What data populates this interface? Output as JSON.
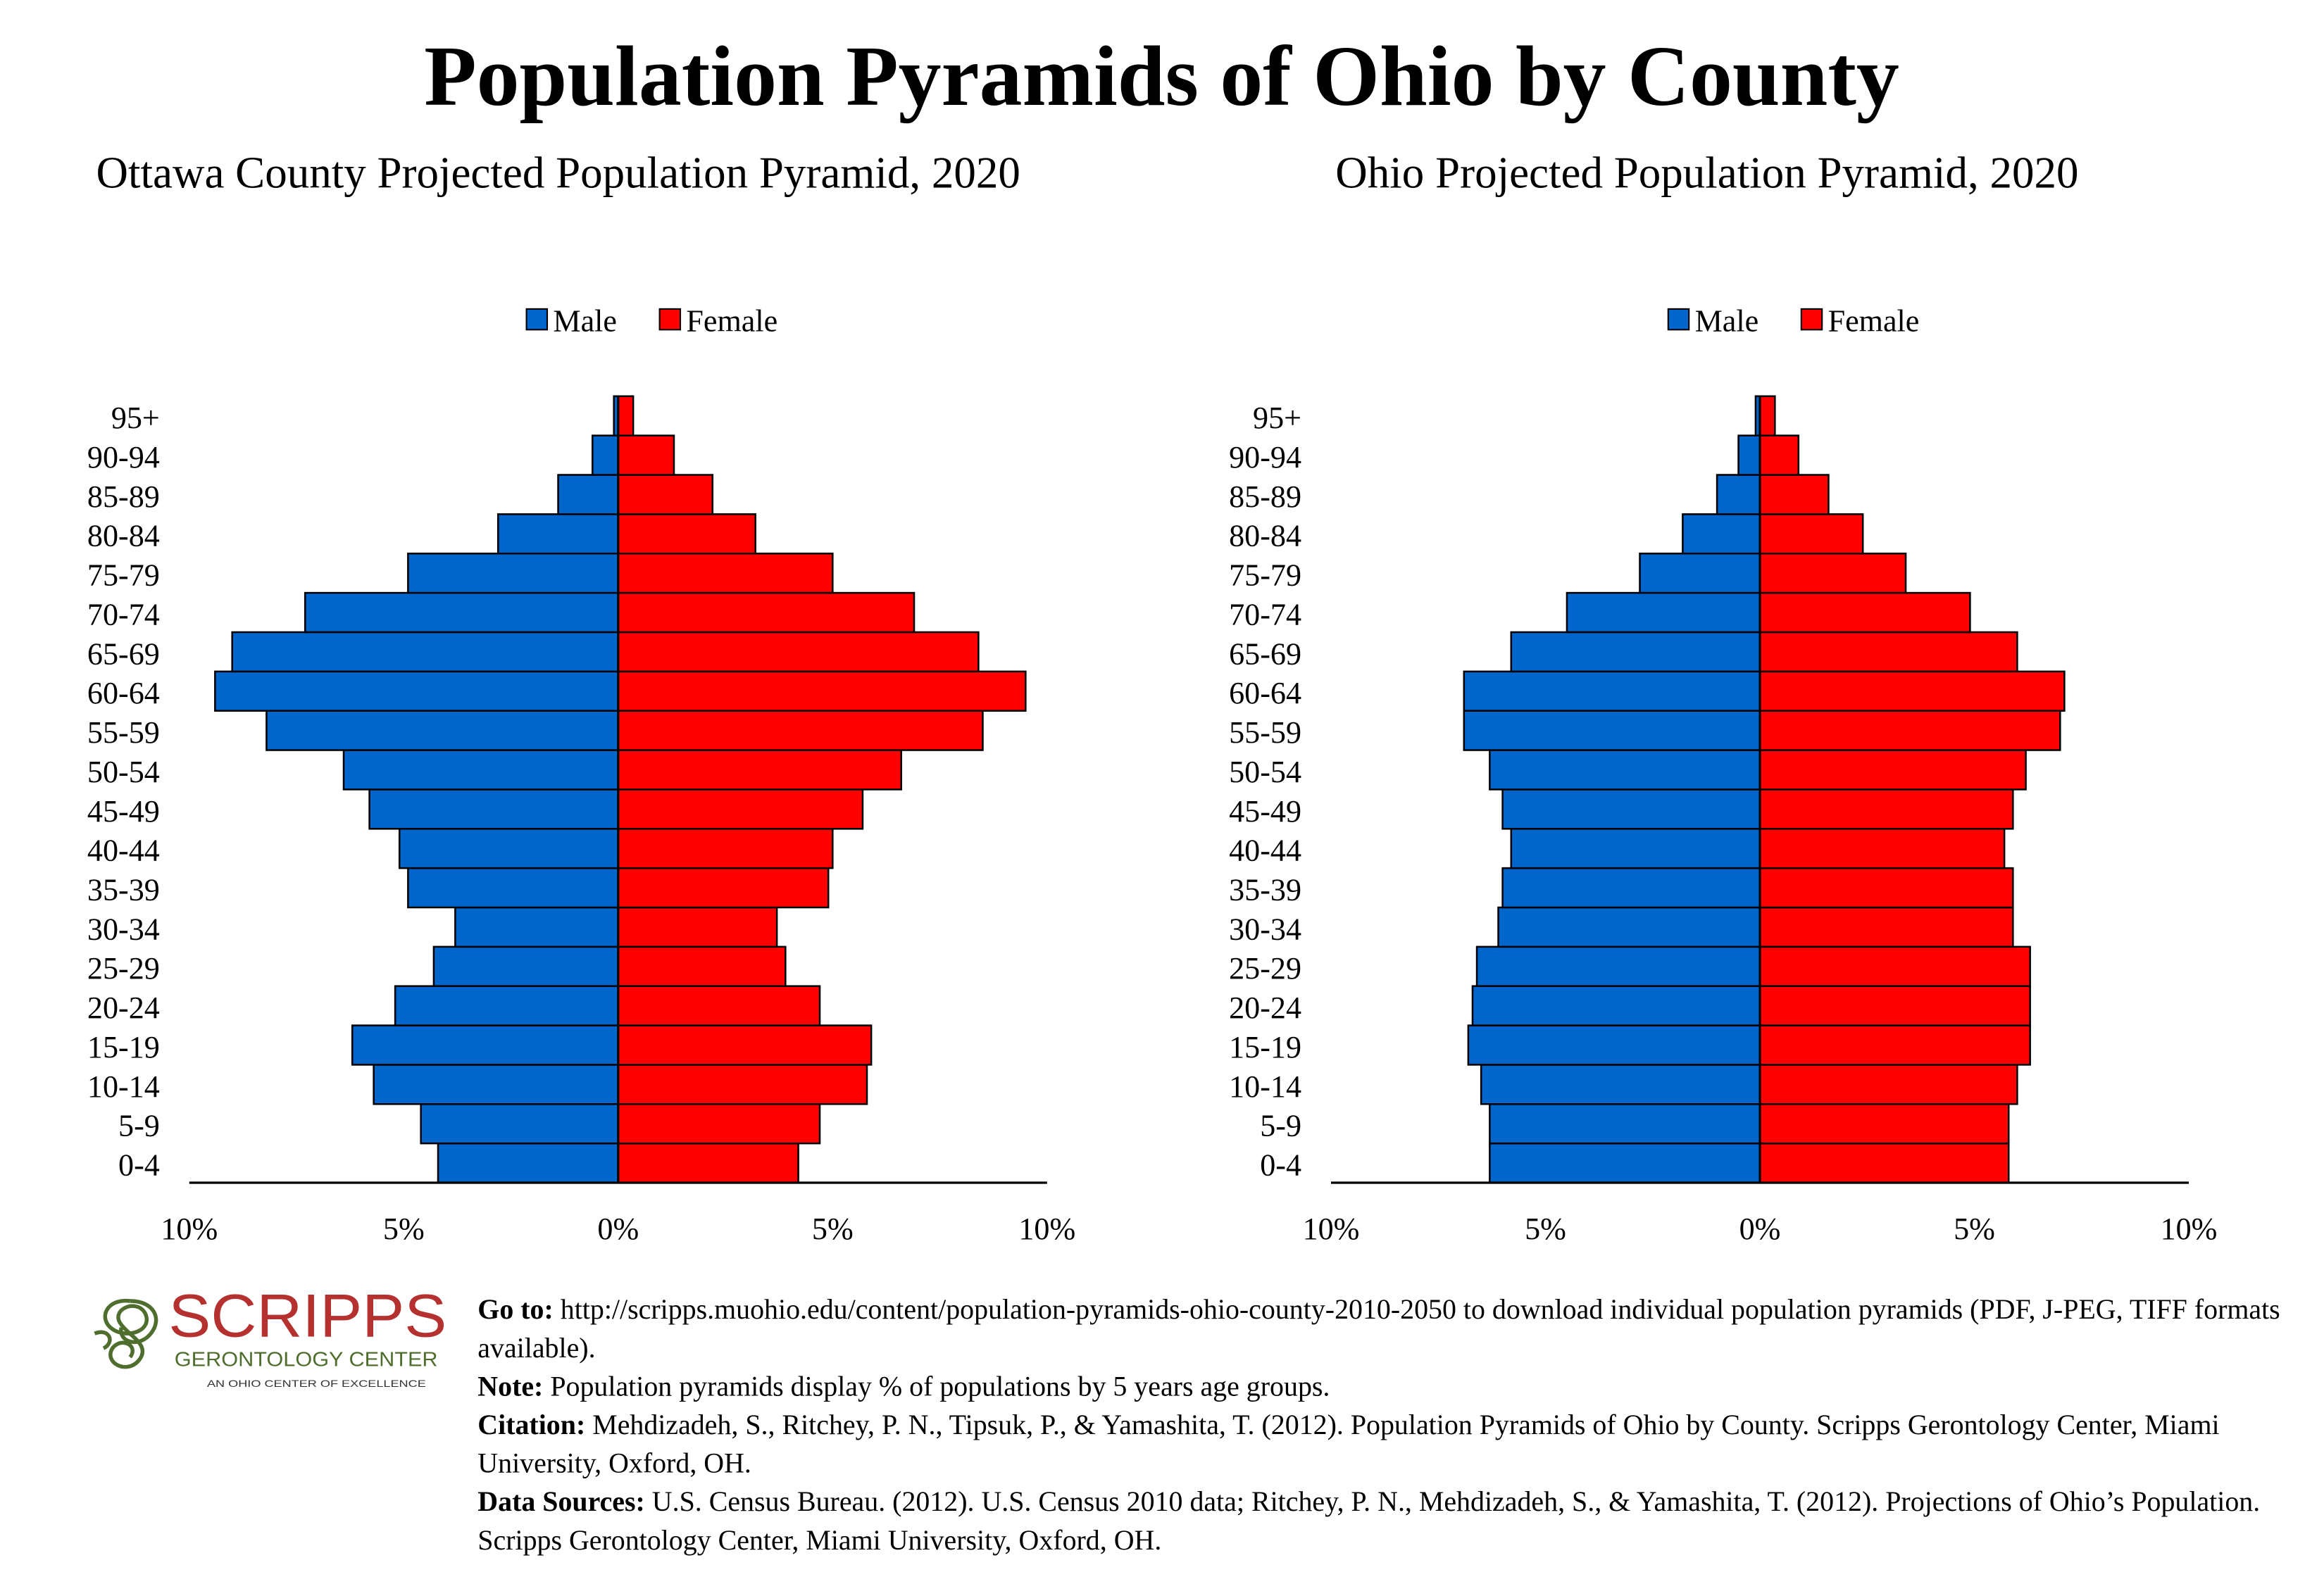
{
  "title": "Population Pyramids of Ohio by County",
  "colors": {
    "male": "#0066cc",
    "female": "#ff0000",
    "logo_red": "#b5312f",
    "logo_green": "#4f6e2e"
  },
  "chart_data": [
    {
      "type": "bar",
      "orientation": "horizontal-pyramid",
      "title": "Ottawa County Projected Population Pyramid, 2020",
      "legend": {
        "placement": "top-center",
        "entries": [
          "Male",
          "Female"
        ]
      },
      "categories": [
        "0-4",
        "5-9",
        "10-14",
        "15-19",
        "20-24",
        "25-29",
        "30-34",
        "35-39",
        "40-44",
        "45-49",
        "50-54",
        "55-59",
        "60-64",
        "65-69",
        "70-74",
        "75-79",
        "80-84",
        "85-89",
        "90-94",
        "95+"
      ],
      "series": [
        {
          "name": "Male",
          "values": [
            4.2,
            4.6,
            5.7,
            6.2,
            5.2,
            4.3,
            3.8,
            4.9,
            5.1,
            5.8,
            6.4,
            8.2,
            9.4,
            9.0,
            7.3,
            4.9,
            2.8,
            1.4,
            0.6,
            0.1
          ]
        },
        {
          "name": "Female",
          "values": [
            4.2,
            4.7,
            5.8,
            5.9,
            4.7,
            3.9,
            3.7,
            4.9,
            5.0,
            5.7,
            6.6,
            8.5,
            9.5,
            8.4,
            6.9,
            5.0,
            3.2,
            2.2,
            1.3,
            0.35
          ]
        }
      ],
      "xlim": [
        -10,
        10
      ],
      "xticks": [
        "10%",
        "5%",
        "0%",
        "5%",
        "10%"
      ],
      "grid": false
    },
    {
      "type": "bar",
      "orientation": "horizontal-pyramid",
      "title": "Ohio Projected Population Pyramid, 2020",
      "legend": {
        "placement": "top-center",
        "entries": [
          "Male",
          "Female"
        ]
      },
      "categories": [
        "0-4",
        "5-9",
        "10-14",
        "15-19",
        "20-24",
        "25-29",
        "30-34",
        "35-39",
        "40-44",
        "45-49",
        "50-54",
        "55-59",
        "60-64",
        "65-69",
        "70-74",
        "75-79",
        "80-84",
        "85-89",
        "90-94",
        "95+"
      ],
      "series": [
        {
          "name": "Male",
          "values": [
            6.3,
            6.3,
            6.5,
            6.8,
            6.7,
            6.6,
            6.1,
            6.0,
            5.8,
            6.0,
            6.3,
            6.9,
            6.9,
            5.8,
            4.5,
            2.8,
            1.8,
            1.0,
            0.5,
            0.1
          ]
        },
        {
          "name": "Female",
          "values": [
            5.8,
            5.8,
            6.0,
            6.3,
            6.3,
            6.3,
            5.9,
            5.9,
            5.7,
            5.9,
            6.2,
            7.0,
            7.1,
            6.0,
            4.9,
            3.4,
            2.4,
            1.6,
            0.9,
            0.35
          ]
        }
      ],
      "xlim": [
        -10,
        10
      ],
      "xticks": [
        "10%",
        "5%",
        "0%",
        "5%",
        "10%"
      ],
      "grid": false
    }
  ],
  "logo": {
    "name": "SCRIPPS",
    "subtitle": "GERONTOLOGY CENTER",
    "tagline": "AN OHIO CENTER OF EXCELLENCE"
  },
  "footer": {
    "goto_label": "Go to:",
    "goto_text": " http://scripps.muohio.edu/content/population-pyramids-ohio-county-2010-2050 to download individual population pyramids (PDF, J-PEG, TIFF formats available).",
    "note_label": "Note:",
    "note_text": " Population pyramids display % of populations by 5 years age groups.",
    "citation_label": "Citation:",
    "citation_text": " Mehdizadeh, S., Ritchey, P. N., Tipsuk, P., & Yamashita, T. (2012). Population Pyramids of Ohio by County. Scripps Gerontology Center, Miami University, Oxford, OH.",
    "sources_label": "Data Sources:",
    "sources_text": " U.S. Census Bureau. (2012). U.S. Census 2010 data; Ritchey, P. N., Mehdizadeh, S., & Yamashita, T. (2012). Projections of Ohio’s Population. Scripps Gerontology Center, Miami University, Oxford, OH."
  }
}
